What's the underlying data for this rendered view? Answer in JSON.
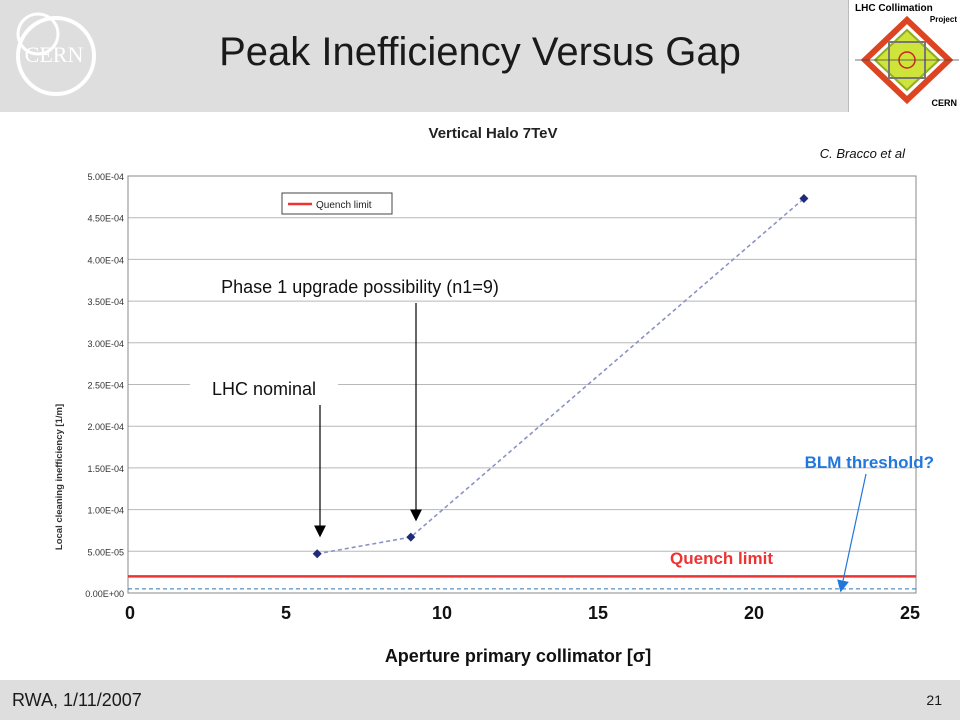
{
  "slide": {
    "title": "Peak Inefficiency Versus Gap",
    "logo_text": "CERN",
    "project_logo": {
      "line1": "LHC Collimation",
      "line2": "Project",
      "line3": "CERN"
    },
    "footer_left": "RWA, 1/11/2007",
    "page_number": "21"
  },
  "chart_data": {
    "type": "scatter",
    "title": "Vertical Halo 7TeV",
    "credit": "C. Bracco et al",
    "xlabel": "Aperture primary collimator [σ]",
    "ylabel": "Local cleaning inefficiency [1/m]",
    "xlim": [
      0,
      25
    ],
    "ylim": [
      0,
      0.0005
    ],
    "x_ticks": [
      "0",
      "5",
      "10",
      "15",
      "20",
      "25"
    ],
    "y_ticks": [
      "0.00E+00",
      "5.00E-05",
      "1.00E-04",
      "1.50E-04",
      "2.00E-04",
      "2.50E-04",
      "3.00E-04",
      "3.50E-04",
      "4.00E-04",
      "4.50E-04",
      "5.00E-04"
    ],
    "series": [
      {
        "values": [
          {
            "x": 6,
            "y": 4.7e-05
          },
          {
            "x": 9,
            "y": 6.7e-05
          },
          {
            "x": 21.6,
            "y": 0.000473
          }
        ],
        "color": "#1f2a78",
        "line": "dashed"
      }
    ],
    "reference_lines": [
      {
        "name": "Quench limit",
        "y": 2e-05,
        "color": "#ee3333"
      },
      {
        "name": "BLM threshold?",
        "y": 5e-06,
        "color": "#2277bb"
      }
    ],
    "legend": {
      "entry": "Quench limit",
      "position": "top-left"
    },
    "annotations": {
      "lhc_nominal": "LHC nominal",
      "phase1": "Phase 1 upgrade possibility (n1=9)",
      "quench_limit": "Quench limit",
      "blm_threshold": "BLM threshold?"
    },
    "grid": true
  }
}
